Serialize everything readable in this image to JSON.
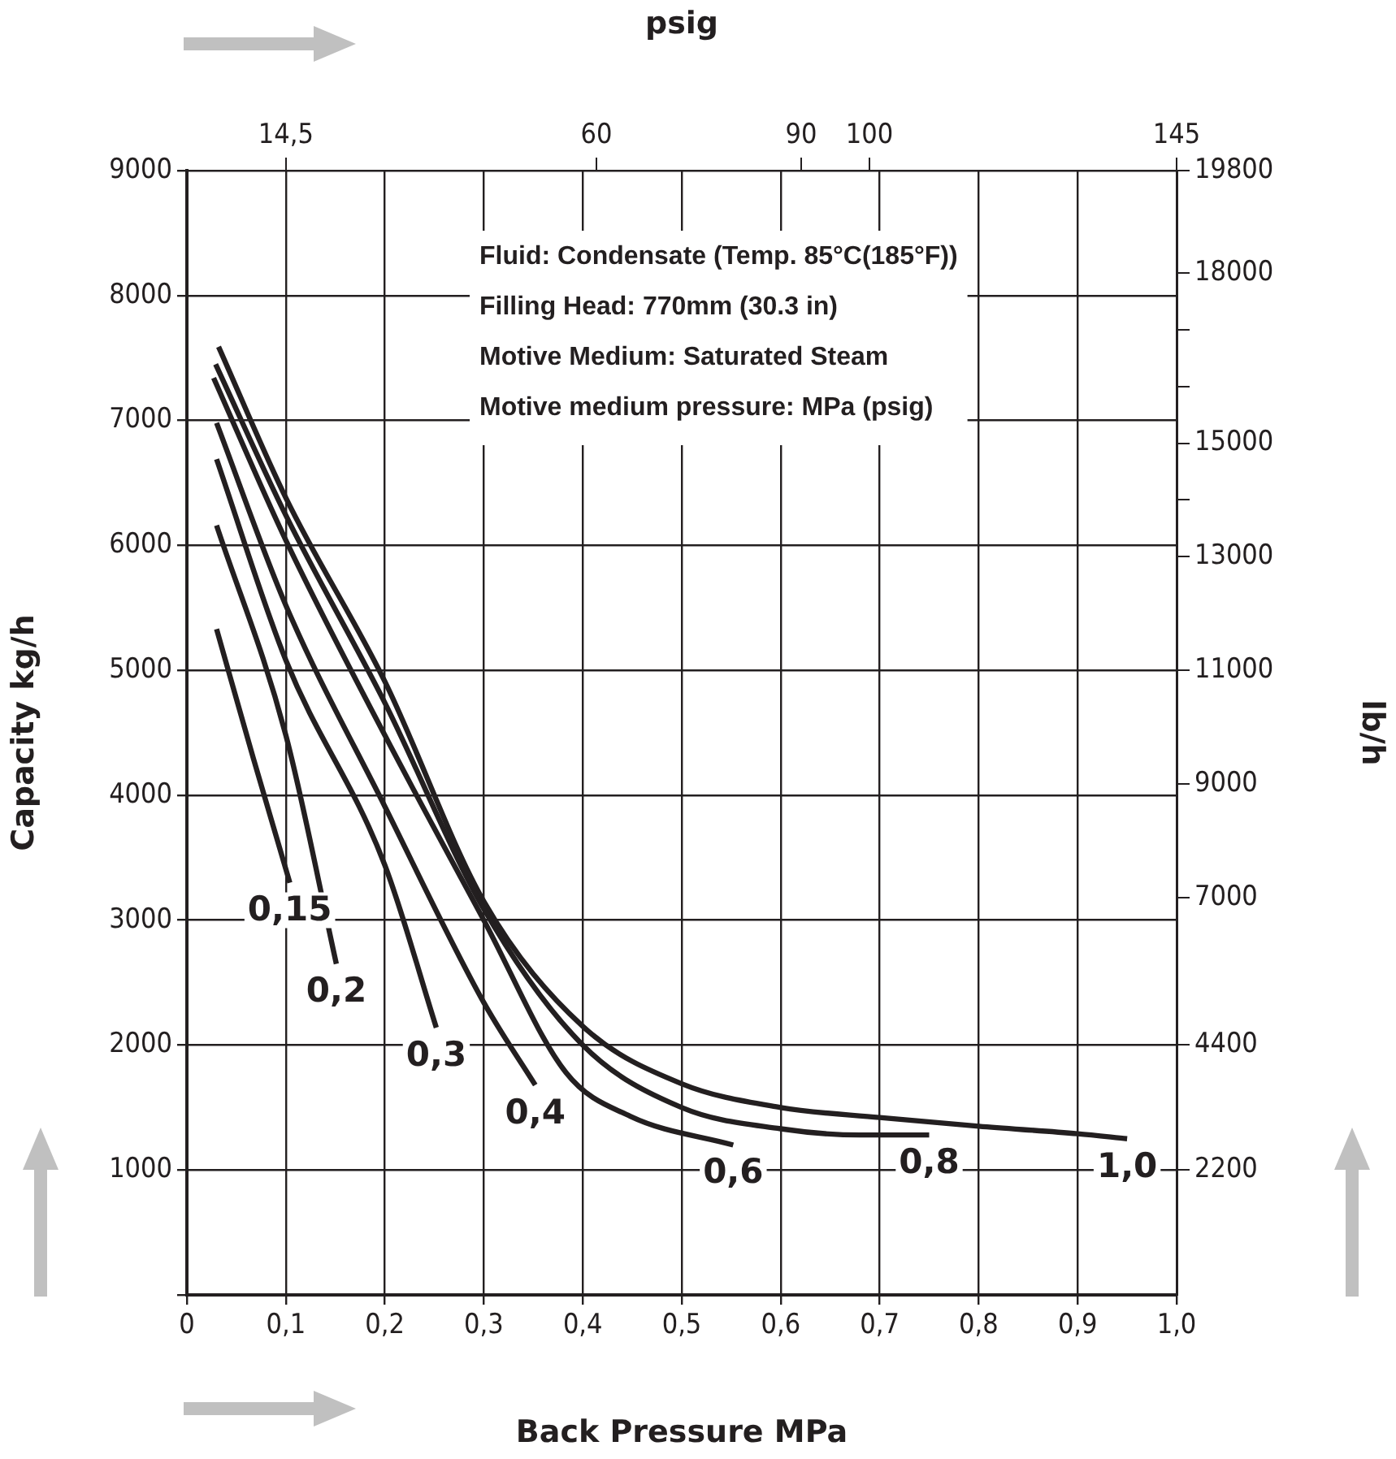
{
  "chart_data": {
    "type": "line",
    "xlabel": "Back Pressure MPa",
    "ylabel": "Capacity kg/h",
    "y2label": "lb/h",
    "x2label": "psig",
    "annotations": [
      "Fluid: Condensate (Temp. 85°C(185°F))",
      "Filling Head: 770mm (30.3 in)",
      "Motive Medium: Saturated Steam",
      "Motive medium pressure: MPa (psig)"
    ],
    "xlim": [
      0,
      1.0
    ],
    "xticks": [
      0,
      {
        "value": 0.1,
        "label": "0,1"
      },
      {
        "value": 0.2,
        "label": "0,2"
      },
      {
        "value": 0.3,
        "label": "0,3"
      },
      {
        "value": 0.4,
        "label": "0,4"
      },
      {
        "value": 0.5,
        "label": "0,5"
      },
      {
        "value": 0.6,
        "label": "0,6"
      },
      {
        "value": 0.7,
        "label": "0,7"
      },
      {
        "value": 0.8,
        "label": "0,8"
      },
      {
        "value": 0.9,
        "label": "0,9"
      },
      {
        "value": 1.0,
        "label": "1,0"
      }
    ],
    "x2lim": [
      0,
      145
    ],
    "x2ticks": [
      {
        "value": 14.5,
        "label": "14,5"
      },
      60,
      90,
      100,
      145
    ],
    "ylim": [
      0,
      9000
    ],
    "yticks": [
      {
        "value": 0,
        "label": null
      },
      1000,
      2000,
      3000,
      4000,
      5000,
      6000,
      7000,
      8000,
      9000
    ],
    "y2lim": [
      0,
      19800
    ],
    "y2ticks": [
      2200,
      4400,
      7000,
      9000,
      11000,
      13000,
      {
        "value": 14000,
        "label": null
      },
      15000,
      {
        "value": 16000,
        "label": null
      },
      {
        "value": 17000,
        "label": null
      },
      18000,
      19800
    ],
    "grid": true,
    "legend": false,
    "marker": "none",
    "line_style": "solid",
    "series": [
      {
        "name": "0,15",
        "color": "#231f20",
        "x": [
          0.03,
          0.067,
          0.104
        ],
        "values": [
          5330,
          4300,
          3300
        ]
      },
      {
        "name": "0,2",
        "color": "#231f20",
        "x": [
          0.03,
          0.1,
          0.151
        ],
        "values": [
          6160,
          4480,
          2650
        ]
      },
      {
        "name": "0,3",
        "color": "#231f20",
        "x": [
          0.03,
          0.1,
          0.2,
          0.252
        ],
        "values": [
          6690,
          5080,
          3440,
          2140
        ]
      },
      {
        "name": "0,4",
        "color": "#231f20",
        "x": [
          0.03,
          0.1,
          0.2,
          0.3,
          0.352
        ],
        "values": [
          6980,
          5520,
          3910,
          2340,
          1680
        ]
      },
      {
        "name": "0,6",
        "color": "#231f20",
        "x": [
          0.027,
          0.1,
          0.2,
          0.3,
          0.383,
          0.448,
          0.552
        ],
        "values": [
          7340,
          6040,
          4480,
          3000,
          1780,
          1430,
          1200
        ]
      },
      {
        "name": "0,8",
        "color": "#231f20",
        "x": [
          0.029,
          0.1,
          0.2,
          0.3,
          0.4,
          0.5,
          0.6,
          0.68,
          0.75
        ],
        "values": [
          7450,
          6240,
          4740,
          3090,
          2000,
          1500,
          1330,
          1280,
          1280
        ]
      },
      {
        "name": "1,0",
        "color": "#231f20",
        "x": [
          0.032,
          0.1,
          0.2,
          0.3,
          0.4,
          0.5,
          0.6,
          0.7,
          0.8,
          0.9,
          0.95
        ],
        "values": [
          7590,
          6380,
          4910,
          3150,
          2150,
          1690,
          1500,
          1420,
          1350,
          1290,
          1250
        ]
      }
    ]
  }
}
